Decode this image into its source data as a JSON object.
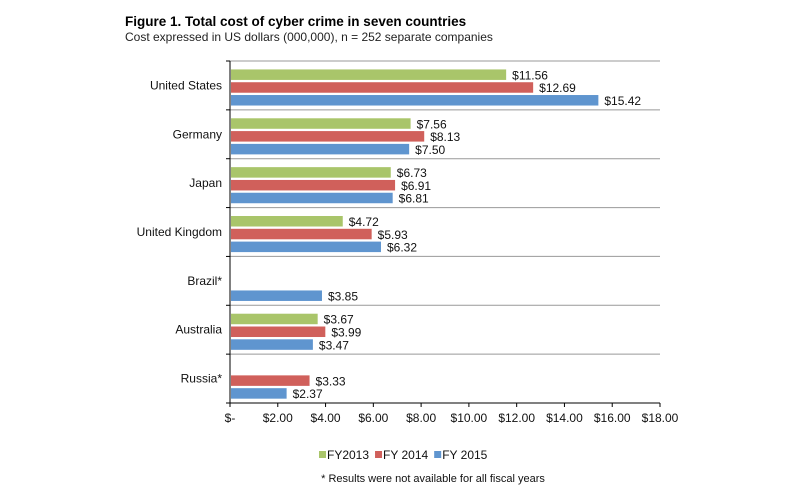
{
  "chart_data": {
    "type": "bar",
    "orientation": "horizontal",
    "title": "Figure 1.  Total cost of cyber crime in seven countries",
    "subtitle": "Cost expressed in US dollars (000,000), n = 252 separate companies",
    "categories": [
      "United States",
      "Germany",
      "Japan",
      "United Kingdom",
      "Brazil*",
      "Australia",
      "Russia*"
    ],
    "series": [
      {
        "name": "FY2013",
        "color": "#a9c56a",
        "values": [
          11.56,
          7.56,
          6.73,
          4.72,
          null,
          3.67,
          null
        ],
        "labels": [
          "$11.56",
          "$7.56",
          "$6.73",
          "$4.72",
          null,
          "$3.67",
          null
        ]
      },
      {
        "name": "FY 2014",
        "color": "#d0605b",
        "values": [
          12.69,
          8.13,
          6.91,
          5.93,
          null,
          3.99,
          3.33
        ],
        "labels": [
          "$12.69",
          "$8.13",
          "$6.91",
          "$5.93",
          null,
          "$3.99",
          "$3.33"
        ]
      },
      {
        "name": "FY 2015",
        "color": "#5f95cf",
        "values": [
          15.42,
          7.5,
          6.81,
          6.32,
          3.85,
          3.47,
          2.37
        ],
        "labels": [
          "$15.42",
          "$7.50",
          "$6.81",
          "$6.32",
          "$3.85",
          "$3.47",
          "$2.37"
        ]
      }
    ],
    "xlim": [
      0,
      18
    ],
    "xticks": [
      0,
      2,
      4,
      6,
      8,
      10,
      12,
      14,
      16,
      18
    ],
    "xtick_labels": [
      "$-",
      "$2.00",
      "$4.00",
      "$6.00",
      "$8.00",
      "$10.00",
      "$12.00",
      "$14.00",
      "$16.00",
      "$18.00"
    ],
    "legend_position": "bottom",
    "footnote": "* Results were not available for all fiscal years"
  }
}
